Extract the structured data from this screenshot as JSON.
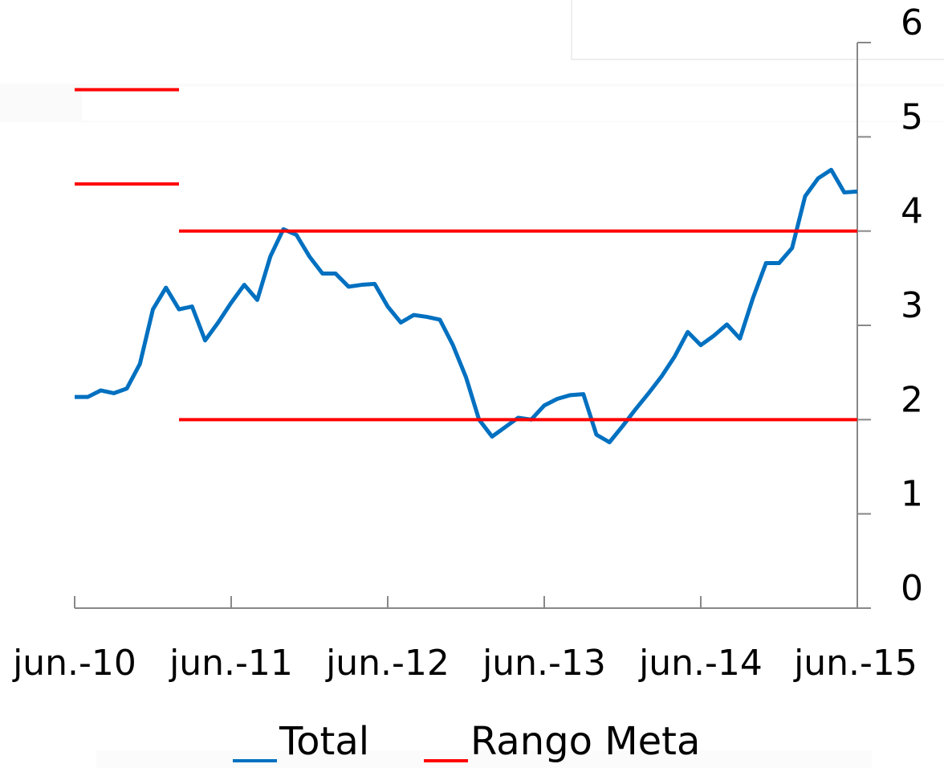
{
  "chart_data": {
    "type": "line",
    "categories": [
      "jun.-10",
      null,
      null,
      null,
      null,
      null,
      null,
      null,
      null,
      null,
      null,
      null,
      "jun.-11",
      null,
      null,
      null,
      null,
      null,
      null,
      null,
      null,
      null,
      null,
      null,
      "jun.-12",
      null,
      null,
      null,
      null,
      null,
      null,
      null,
      null,
      null,
      null,
      null,
      "jun.-13",
      null,
      null,
      null,
      null,
      null,
      null,
      null,
      null,
      null,
      null,
      null,
      "jun.-14",
      null,
      null,
      null,
      null,
      null,
      null,
      null,
      null,
      null,
      null,
      null,
      "jun.-15"
    ],
    "series": [
      {
        "name": "Total",
        "color": "#0070c0",
        "values": [
          2.24,
          2.24,
          2.31,
          2.28,
          2.33,
          2.59,
          3.17,
          3.4,
          3.17,
          3.2,
          2.84,
          3.03,
          3.24,
          3.43,
          3.27,
          3.73,
          4.02,
          3.96,
          3.73,
          3.55,
          3.55,
          3.41,
          3.43,
          3.44,
          3.2,
          3.03,
          3.11,
          3.09,
          3.06,
          2.79,
          2.45,
          2.0,
          1.82,
          1.92,
          2.02,
          2.0,
          2.15,
          2.22,
          2.26,
          2.27,
          1.84,
          1.76,
          1.93,
          2.11,
          2.28,
          2.46,
          2.67,
          2.93,
          2.79,
          2.89,
          3.01,
          2.86,
          3.29,
          3.66,
          3.66,
          3.82,
          4.37,
          4.56,
          4.65,
          4.41,
          4.42
        ]
      },
      {
        "name": "Rango Meta",
        "color": "#ff0000",
        "ranges": [
          {
            "start": 0,
            "end": 8,
            "low": 4.5,
            "high": 5.5
          },
          {
            "start": 8,
            "end": 60,
            "low": 2,
            "high": 4
          }
        ]
      }
    ],
    "ylim": [
      0,
      6
    ],
    "yticks": [
      0,
      1,
      2,
      3,
      4,
      5,
      6
    ],
    "y_axis_side": "right",
    "legend": "bottom"
  }
}
